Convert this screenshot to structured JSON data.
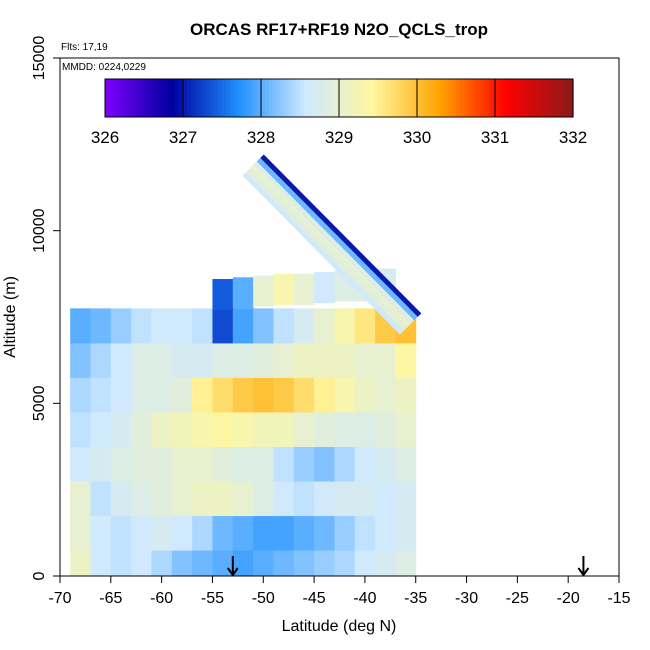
{
  "chart_data": {
    "type": "heatmap",
    "title": "ORCAS RF17+RF19 N2O_QCLS_trop",
    "flights_note": "Flts: 17,19",
    "date_note": "MMDD: 0224,0229",
    "xlabel": "Latitude (deg N)",
    "ylabel": "Altitude (m)",
    "xlim": [
      -70,
      -15
    ],
    "ylim": [
      0,
      15000
    ],
    "x_ticks": [
      -70,
      -65,
      -60,
      -55,
      -50,
      -45,
      -40,
      -35,
      -30,
      -25,
      -20,
      -15
    ],
    "x_tick_labels": [
      "-70",
      "-65",
      "-60",
      "-55",
      "-50",
      "-45",
      "-40",
      "-35",
      "-30",
      "-25",
      "-20",
      "-15"
    ],
    "y_ticks": [
      0,
      5000,
      10000,
      15000
    ],
    "y_tick_labels": [
      "0",
      "5000",
      "10000",
      "15000"
    ],
    "colorbar": {
      "ticks": [
        326,
        327,
        328,
        329,
        330,
        331,
        332
      ],
      "tick_labels": [
        "326",
        "327",
        "328",
        "329",
        "330",
        "331",
        "332"
      ],
      "colors": [
        "#7f00ff",
        "#00009f",
        "#1e90ff",
        "#cfe9ff",
        "#fff7a0",
        "#ffa500",
        "#ff0000",
        "#8b1a1a"
      ],
      "placement": "top-inside"
    },
    "arrow_markers_lat": [
      -53,
      -18.5
    ],
    "grid": false,
    "value_grid": {
      "lat": [
        -68,
        -66,
        -64,
        -62,
        -60,
        -58,
        -56,
        -54,
        -52,
        -50,
        -48,
        -46,
        -44,
        -42,
        -40,
        -38,
        -36
      ],
      "alt": [
        250,
        1250,
        2250,
        3250,
        4250,
        5250,
        6250,
        7250
      ],
      "values": [
        [
          329.1,
          328.6,
          328.5,
          328.6,
          328.4,
          328.2,
          328.1,
          328.0,
          327.9,
          328.0,
          328.1,
          328.2,
          328.3,
          328.4,
          328.6,
          328.7,
          328.8
        ],
        [
          329.0,
          328.6,
          328.5,
          328.6,
          328.7,
          328.6,
          328.4,
          328.1,
          328.0,
          327.9,
          327.9,
          328.0,
          328.1,
          328.3,
          328.5,
          328.6,
          328.7
        ],
        [
          329.0,
          328.5,
          328.7,
          328.8,
          328.9,
          329.0,
          329.1,
          329.1,
          329.0,
          328.8,
          328.6,
          328.5,
          328.6,
          328.7,
          328.7,
          328.6,
          328.7
        ],
        [
          328.6,
          328.7,
          328.8,
          328.9,
          328.9,
          329.0,
          329.0,
          328.9,
          328.8,
          328.8,
          328.5,
          328.3,
          328.2,
          328.4,
          328.6,
          328.7,
          328.8
        ],
        [
          328.5,
          328.6,
          328.7,
          328.9,
          329.1,
          329.2,
          329.3,
          329.4,
          329.3,
          329.2,
          329.2,
          329.0,
          328.9,
          328.8,
          328.8,
          328.9,
          329.0
        ],
        [
          328.4,
          328.5,
          328.6,
          328.8,
          328.8,
          328.9,
          329.5,
          329.7,
          329.9,
          330.0,
          329.9,
          329.7,
          329.5,
          329.3,
          329.1,
          329.0,
          329.1
        ],
        [
          328.2,
          328.4,
          328.6,
          328.8,
          328.8,
          328.7,
          328.7,
          328.8,
          328.8,
          328.9,
          329.0,
          329.1,
          329.1,
          329.1,
          329.0,
          329.0,
          329.4
        ],
        [
          328.0,
          328.1,
          328.3,
          328.5,
          328.6,
          328.6,
          328.5,
          327.3,
          327.9,
          328.2,
          328.5,
          328.7,
          329.0,
          329.3,
          329.6,
          329.9,
          330.0
        ]
      ]
    },
    "upper_leg": {
      "lat": [
        -54,
        -52,
        -50,
        -48,
        -46,
        -44,
        -42,
        -40,
        -38
      ],
      "alt_bottom": [
        7700,
        7750,
        7800,
        7850,
        7850,
        7900,
        7950,
        7950,
        8000
      ],
      "values": [
        327.4,
        328.0,
        329.0,
        329.3,
        329.0,
        328.6,
        328.8,
        328.9,
        328.7
      ]
    },
    "slant_leg": {
      "lat_start": -51,
      "alt_start": 11900,
      "lat_end": -35.5,
      "alt_end": 7300,
      "values_across": [
        327.0,
        328.1,
        328.8,
        329.0,
        328.9,
        328.6
      ]
    }
  }
}
